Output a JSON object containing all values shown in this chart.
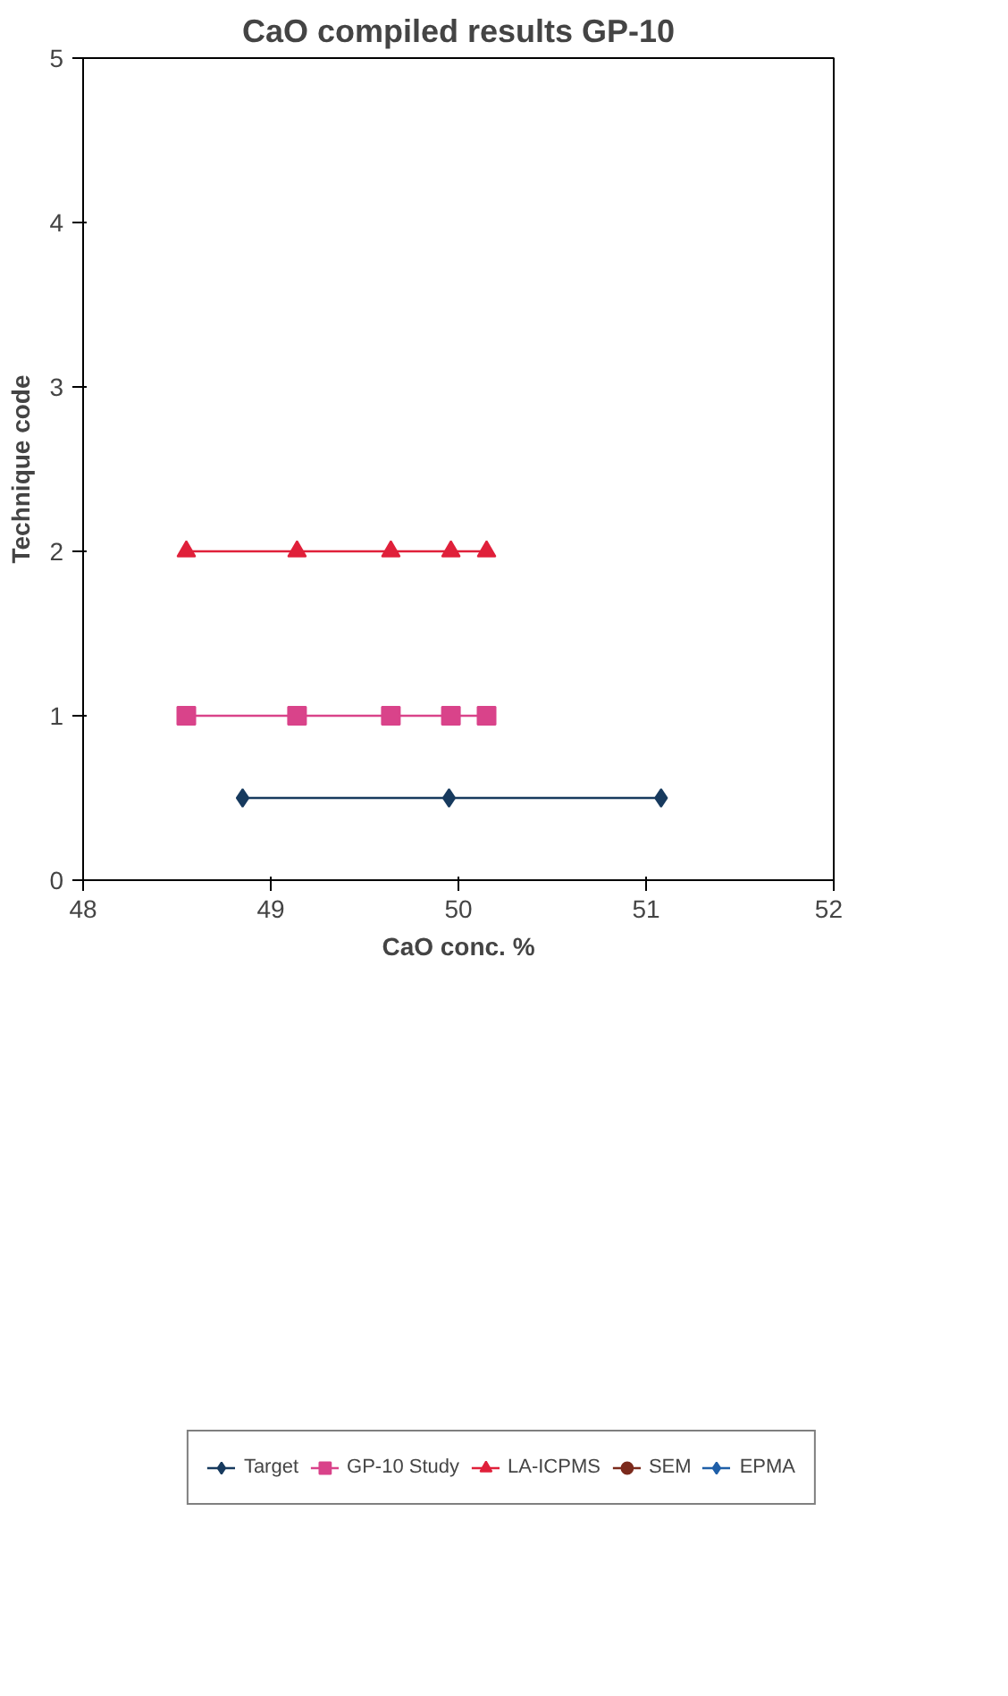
{
  "chart_data": {
    "type": "line",
    "title": "CaO compiled results GP-10",
    "xlabel": "CaO conc. %",
    "ylabel": "Technique code",
    "xlim": [
      48,
      52
    ],
    "xticks": [
      48,
      49,
      50,
      51,
      52
    ],
    "ylim": [
      0,
      5
    ],
    "yticks": [
      0,
      1,
      2,
      3,
      4,
      5
    ],
    "grid": false,
    "legend": "bottom",
    "series": [
      {
        "name": "Target",
        "color": "#173a5e",
        "marker": "diamond",
        "x": [
          48.85,
          49.95,
          51.08
        ],
        "values": [
          0.5,
          0.5,
          0.5
        ]
      },
      {
        "name": "GP-10 Study",
        "color": "#d9438a",
        "marker": "square",
        "x": [
          48.55,
          49.14,
          49.64,
          49.96,
          50.15
        ],
        "values": [
          1,
          1,
          1,
          1,
          1
        ]
      },
      {
        "name": "LA-ICPMS",
        "color": "#e0203a",
        "marker": "triangle",
        "x": [
          48.55,
          49.14,
          49.64,
          49.96,
          50.15
        ],
        "values": [
          2,
          2,
          2,
          2,
          2
        ]
      },
      {
        "name": "SEM",
        "color": "#7b2a1c",
        "marker": "circle"
      },
      {
        "name": "EPMA",
        "color": "#1f5fa8",
        "marker": "diamond"
      }
    ]
  }
}
